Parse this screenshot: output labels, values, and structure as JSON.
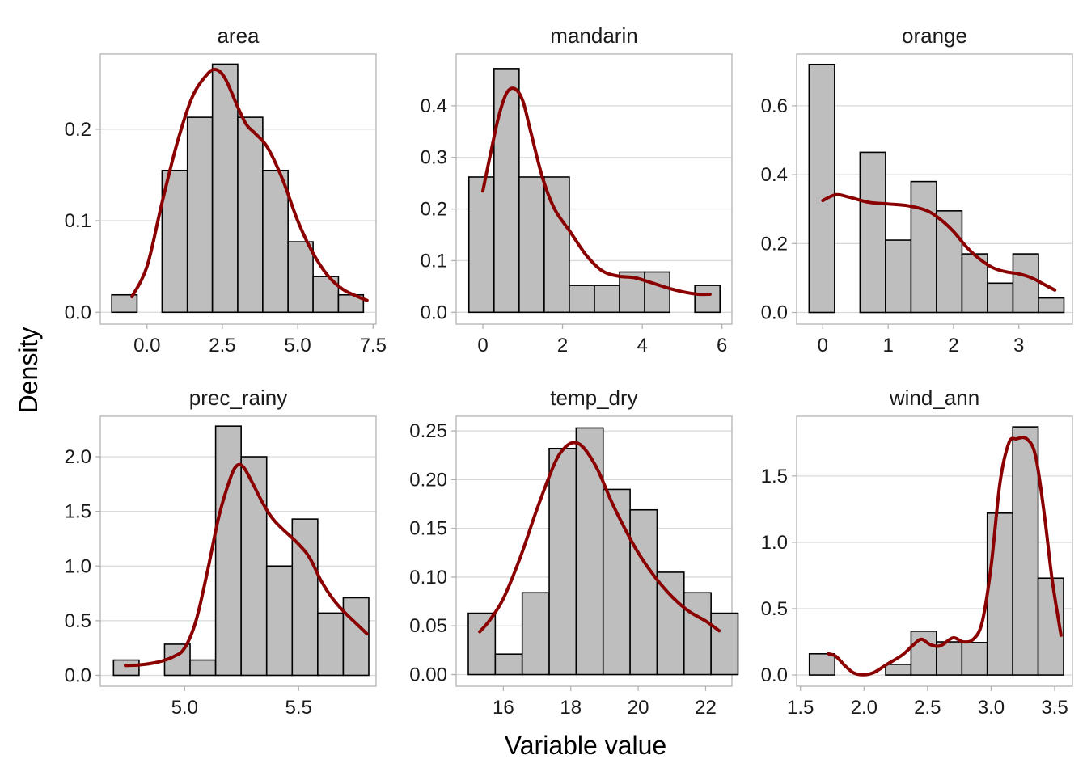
{
  "figure": {
    "xlabel": "Variable value",
    "ylabel": "Density"
  },
  "style": {
    "bar_fill": "#bebebe",
    "bar_stroke": "#000000",
    "density_color": "#8b0000",
    "grid_color": "#d9d9d9",
    "panel_border": "#b3b3b3"
  },
  "chart_data": [
    {
      "type": "bar",
      "title": "area",
      "xlim": [
        -1.55,
        7.6
      ],
      "ylim": [
        -0.013,
        0.282
      ],
      "xticks": [
        0.0,
        2.5,
        5.0,
        7.5
      ],
      "xtick_labels": [
        "0.0",
        "2.5",
        "5.0",
        "7.5"
      ],
      "yticks": [
        0.0,
        0.1,
        0.2
      ],
      "ytick_labels": [
        "0.0",
        "0.1",
        "0.2"
      ],
      "bins": [
        [
          -1.17,
          -0.33
        ],
        [
          -0.33,
          0.5
        ],
        [
          0.5,
          1.34
        ],
        [
          1.34,
          2.17
        ],
        [
          2.17,
          3.01
        ],
        [
          3.01,
          3.84
        ],
        [
          3.84,
          4.68
        ],
        [
          4.68,
          5.51
        ],
        [
          5.51,
          6.35
        ],
        [
          6.35,
          7.18
        ]
      ],
      "values": [
        0.019,
        0.0,
        0.155,
        0.213,
        0.271,
        0.213,
        0.155,
        0.077,
        0.039,
        0.019
      ],
      "density": [
        [
          -0.5,
          0.017
        ],
        [
          0.0,
          0.05
        ],
        [
          0.5,
          0.12
        ],
        [
          1.0,
          0.185
        ],
        [
          1.5,
          0.235
        ],
        [
          2.0,
          0.26
        ],
        [
          2.3,
          0.265
        ],
        [
          2.6,
          0.255
        ],
        [
          3.0,
          0.225
        ],
        [
          3.3,
          0.205
        ],
        [
          3.6,
          0.195
        ],
        [
          4.0,
          0.18
        ],
        [
          4.5,
          0.145
        ],
        [
          5.0,
          0.1
        ],
        [
          5.5,
          0.065
        ],
        [
          6.0,
          0.04
        ],
        [
          6.5,
          0.025
        ],
        [
          7.0,
          0.017
        ],
        [
          7.3,
          0.013
        ]
      ]
    },
    {
      "type": "bar",
      "title": "mandarin",
      "xlim": [
        -0.67,
        6.25
      ],
      "ylim": [
        -0.023,
        0.5
      ],
      "xticks": [
        0,
        2,
        4,
        6
      ],
      "xtick_labels": [
        "0",
        "2",
        "4",
        "6"
      ],
      "yticks": [
        0.0,
        0.1,
        0.2,
        0.3,
        0.4
      ],
      "ytick_labels": [
        "0.0",
        "0.1",
        "0.2",
        "0.3",
        "0.4"
      ],
      "bins": [
        [
          -0.35,
          0.28
        ],
        [
          0.28,
          0.91
        ],
        [
          0.91,
          1.54
        ],
        [
          1.54,
          2.17
        ],
        [
          2.17,
          2.8
        ],
        [
          2.8,
          3.43
        ],
        [
          3.43,
          4.06
        ],
        [
          4.06,
          4.69
        ],
        [
          4.69,
          5.32
        ],
        [
          5.32,
          5.95
        ]
      ],
      "values": [
        0.262,
        0.472,
        0.262,
        0.262,
        0.052,
        0.052,
        0.078,
        0.078,
        0.0,
        0.052
      ],
      "density": [
        [
          0.0,
          0.235
        ],
        [
          0.2,
          0.31
        ],
        [
          0.4,
          0.38
        ],
        [
          0.6,
          0.425
        ],
        [
          0.8,
          0.433
        ],
        [
          1.0,
          0.41
        ],
        [
          1.2,
          0.35
        ],
        [
          1.5,
          0.26
        ],
        [
          1.8,
          0.2
        ],
        [
          2.2,
          0.155
        ],
        [
          2.6,
          0.11
        ],
        [
          3.0,
          0.08
        ],
        [
          3.4,
          0.07
        ],
        [
          3.8,
          0.067
        ],
        [
          4.2,
          0.058
        ],
        [
          4.6,
          0.048
        ],
        [
          5.0,
          0.04
        ],
        [
          5.4,
          0.035
        ],
        [
          5.7,
          0.035
        ]
      ]
    },
    {
      "type": "bar",
      "title": "orange",
      "xlim": [
        -0.4,
        3.82
      ],
      "ylim": [
        -0.034,
        0.75
      ],
      "xticks": [
        0,
        1,
        2,
        3
      ],
      "xtick_labels": [
        "0",
        "1",
        "2",
        "3"
      ],
      "yticks": [
        0.0,
        0.2,
        0.4,
        0.6
      ],
      "ytick_labels": [
        "0.0",
        "0.2",
        "0.4",
        "0.6"
      ],
      "bins": [
        [
          -0.21,
          0.18
        ],
        [
          0.18,
          0.57
        ],
        [
          0.57,
          0.96
        ],
        [
          0.96,
          1.35
        ],
        [
          1.35,
          1.74
        ],
        [
          1.74,
          2.13
        ],
        [
          2.13,
          2.52
        ],
        [
          2.52,
          2.91
        ],
        [
          2.91,
          3.3
        ],
        [
          3.3,
          3.69
        ]
      ],
      "values": [
        0.72,
        0.0,
        0.465,
        0.21,
        0.38,
        0.295,
        0.17,
        0.085,
        0.17,
        0.042
      ],
      "density": [
        [
          0.0,
          0.325
        ],
        [
          0.2,
          0.342
        ],
        [
          0.4,
          0.335
        ],
        [
          0.7,
          0.32
        ],
        [
          1.0,
          0.315
        ],
        [
          1.3,
          0.31
        ],
        [
          1.6,
          0.295
        ],
        [
          1.8,
          0.27
        ],
        [
          2.0,
          0.235
        ],
        [
          2.2,
          0.19
        ],
        [
          2.4,
          0.155
        ],
        [
          2.6,
          0.13
        ],
        [
          2.8,
          0.118
        ],
        [
          3.0,
          0.112
        ],
        [
          3.2,
          0.1
        ],
        [
          3.4,
          0.08
        ],
        [
          3.55,
          0.065
        ]
      ]
    },
    {
      "type": "bar",
      "title": "prec_rainy",
      "xlim": [
        4.63,
        5.84
      ],
      "ylim": [
        -0.1,
        2.37
      ],
      "xticks": [
        5.0,
        5.5
      ],
      "xtick_labels": [
        "5.0",
        "5.5"
      ],
      "yticks": [
        0.0,
        0.5,
        1.0,
        1.5,
        2.0
      ],
      "ytick_labels": [
        "0.0",
        "0.5",
        "1.0",
        "1.5",
        "2.0"
      ],
      "bins": [
        [
          4.688,
          4.8
        ],
        [
          4.8,
          4.912
        ],
        [
          4.912,
          5.024
        ],
        [
          5.024,
          5.136
        ],
        [
          5.136,
          5.248
        ],
        [
          5.248,
          5.36
        ],
        [
          5.36,
          5.472
        ],
        [
          5.472,
          5.584
        ],
        [
          5.584,
          5.696
        ],
        [
          5.696,
          5.808
        ]
      ],
      "values": [
        0.14,
        0.0,
        0.285,
        0.14,
        2.28,
        2.0,
        1.0,
        1.43,
        0.57,
        0.71
      ],
      "density": [
        [
          4.74,
          0.09
        ],
        [
          4.8,
          0.095
        ],
        [
          4.88,
          0.12
        ],
        [
          4.95,
          0.17
        ],
        [
          5.0,
          0.25
        ],
        [
          5.05,
          0.5
        ],
        [
          5.1,
          0.95
        ],
        [
          5.15,
          1.45
        ],
        [
          5.2,
          1.8
        ],
        [
          5.23,
          1.92
        ],
        [
          5.26,
          1.9
        ],
        [
          5.3,
          1.75
        ],
        [
          5.35,
          1.55
        ],
        [
          5.4,
          1.4
        ],
        [
          5.5,
          1.2
        ],
        [
          5.55,
          1.07
        ],
        [
          5.6,
          0.86
        ],
        [
          5.65,
          0.7
        ],
        [
          5.7,
          0.58
        ],
        [
          5.75,
          0.48
        ],
        [
          5.8,
          0.38
        ]
      ]
    },
    {
      "type": "bar",
      "title": "temp_dry",
      "xlim": [
        14.6,
        22.78
      ],
      "ylim": [
        -0.012,
        0.265
      ],
      "xticks": [
        16,
        18,
        20,
        22
      ],
      "xtick_labels": [
        "16",
        "18",
        "20",
        "22"
      ],
      "yticks": [
        0.0,
        0.05,
        0.1,
        0.15,
        0.2,
        0.25
      ],
      "ytick_labels": [
        "0.00",
        "0.05",
        "0.10",
        "0.15",
        "0.20",
        "0.25"
      ],
      "bins": [
        [
          14.96,
          15.76
        ],
        [
          15.76,
          16.56
        ],
        [
          16.56,
          17.36
        ],
        [
          17.36,
          18.16
        ],
        [
          18.16,
          18.96
        ],
        [
          18.96,
          19.76
        ],
        [
          19.76,
          20.56
        ],
        [
          20.56,
          21.36
        ],
        [
          21.36,
          22.16
        ],
        [
          22.16,
          22.96
        ]
      ],
      "values": [
        0.063,
        0.021,
        0.084,
        0.232,
        0.253,
        0.19,
        0.169,
        0.105,
        0.084,
        0.063
      ],
      "density": [
        [
          15.3,
          0.044
        ],
        [
          15.6,
          0.056
        ],
        [
          16.0,
          0.078
        ],
        [
          16.5,
          0.12
        ],
        [
          17.0,
          0.17
        ],
        [
          17.5,
          0.215
        ],
        [
          17.8,
          0.232
        ],
        [
          18.1,
          0.238
        ],
        [
          18.4,
          0.232
        ],
        [
          18.8,
          0.21
        ],
        [
          19.2,
          0.178
        ],
        [
          19.6,
          0.15
        ],
        [
          20.0,
          0.125
        ],
        [
          20.5,
          0.1
        ],
        [
          21.0,
          0.08
        ],
        [
          21.5,
          0.065
        ],
        [
          22.0,
          0.055
        ],
        [
          22.4,
          0.045
        ]
      ]
    },
    {
      "type": "bar",
      "title": "wind_ann",
      "xlim": [
        1.47,
        3.64
      ],
      "ylim": [
        -0.085,
        1.95
      ],
      "xticks": [
        1.5,
        2.0,
        2.5,
        3.0,
        3.5
      ],
      "xtick_labels": [
        "1.5",
        "2.0",
        "2.5",
        "3.0",
        "3.5"
      ],
      "yticks": [
        0.0,
        0.5,
        1.0,
        1.5
      ],
      "ytick_labels": [
        "0.0",
        "0.5",
        "1.0",
        "1.5"
      ],
      "bins": [
        [
          1.57,
          1.77
        ],
        [
          1.77,
          1.97
        ],
        [
          1.97,
          2.17
        ],
        [
          2.17,
          2.37
        ],
        [
          2.37,
          2.57
        ],
        [
          2.57,
          2.77
        ],
        [
          2.77,
          2.97
        ],
        [
          2.97,
          3.17
        ],
        [
          3.17,
          3.37
        ],
        [
          3.37,
          3.57
        ]
      ],
      "values": [
        0.16,
        0.0,
        0.0,
        0.08,
        0.33,
        0.25,
        0.245,
        1.22,
        1.87,
        0.73
      ],
      "density": [
        [
          1.72,
          0.16
        ],
        [
          1.78,
          0.14
        ],
        [
          1.85,
          0.07
        ],
        [
          1.92,
          0.015
        ],
        [
          2.0,
          0.002
        ],
        [
          2.08,
          0.02
        ],
        [
          2.18,
          0.08
        ],
        [
          2.3,
          0.15
        ],
        [
          2.38,
          0.22
        ],
        [
          2.45,
          0.27
        ],
        [
          2.52,
          0.23
        ],
        [
          2.6,
          0.22
        ],
        [
          2.7,
          0.28
        ],
        [
          2.78,
          0.25
        ],
        [
          2.86,
          0.27
        ],
        [
          2.93,
          0.4
        ],
        [
          3.0,
          0.82
        ],
        [
          3.07,
          1.45
        ],
        [
          3.14,
          1.75
        ],
        [
          3.2,
          1.78
        ],
        [
          3.28,
          1.78
        ],
        [
          3.35,
          1.65
        ],
        [
          3.42,
          1.2
        ],
        [
          3.48,
          0.72
        ],
        [
          3.55,
          0.3
        ]
      ]
    }
  ]
}
